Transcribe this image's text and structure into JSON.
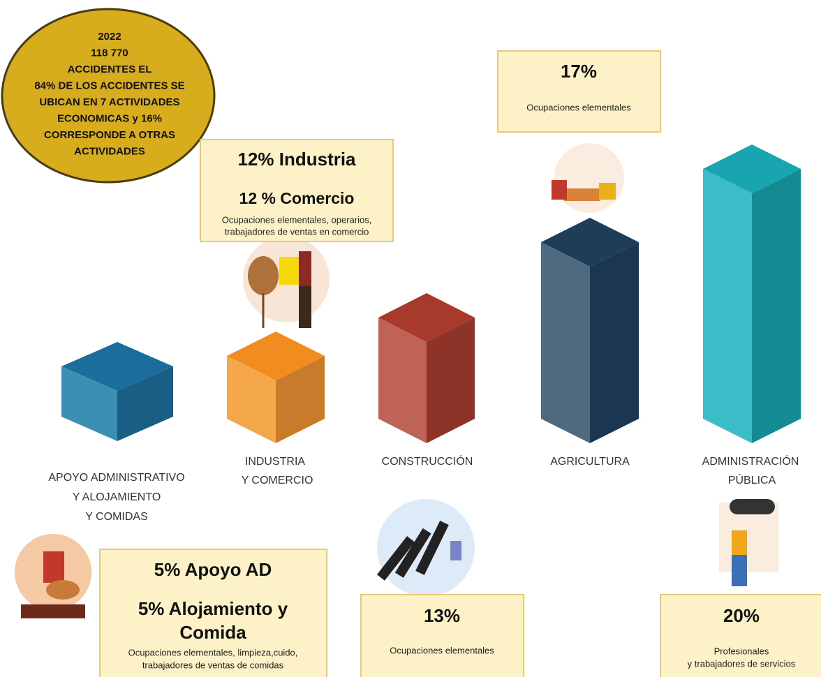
{
  "badge": {
    "lines": [
      "2022",
      "118 770",
      "ACCIDENTES EL",
      "84% DE LOS ACCIDENTES SE",
      "UBICAN EN 7 ACTIVIDADES",
      "ECONOMICAS y 16%",
      "CORRESPONDE A OTRAS",
      "ACTIVIDADES"
    ]
  },
  "columns": [
    {
      "label": [
        "APOYO ADMINISTRATIVO",
        "Y ALOJAMIENTO",
        "Y COMIDAS"
      ]
    },
    {
      "label": [
        "INDUSTRIA",
        "Y COMERCIO"
      ]
    },
    {
      "label": [
        "CONSTRUCCIÓN"
      ]
    },
    {
      "label": [
        "AGRICULTURA"
      ]
    },
    {
      "label": [
        "ADMINISTRACIÓN",
        "PÚBLICA"
      ]
    }
  ],
  "boxes": [
    {
      "headings": [
        "12% Industria",
        "12 % Comercio"
      ],
      "text": [
        "Ocupaciones elementales, operarios,",
        "trabajadores de ventas en comercio"
      ]
    },
    {
      "headings": [
        "17%"
      ],
      "text": [
        "Ocupaciones elementales"
      ]
    },
    {
      "headings": [
        "5% Apoyo AD",
        "5% Alojamiento y",
        "Comida"
      ],
      "text": [
        "Ocupaciones elementales, limpieza,cuido,",
        "trabajadores de ventas de comidas"
      ]
    },
    {
      "headings": [
        "13%"
      ],
      "text": [
        "Ocupaciones elementales"
      ]
    },
    {
      "headings": [
        "20%"
      ],
      "text": [
        "Profesionales",
        "y trabajadores de servicios"
      ]
    }
  ]
}
